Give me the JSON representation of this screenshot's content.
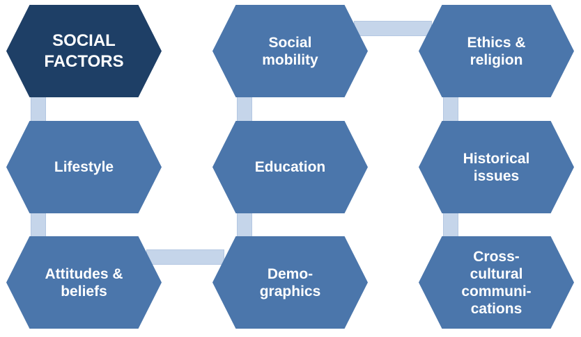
{
  "diagram": {
    "nodes": [
      {
        "label": "SOCIAL\nFACTORS",
        "color": "#1e3f66"
      },
      {
        "label": "Social\nmobility",
        "color": "#4b76ab"
      },
      {
        "label": "Ethics &\nreligion",
        "color": "#4b76ab"
      },
      {
        "label": "Lifestyle",
        "color": "#4b76ab"
      },
      {
        "label": "Education",
        "color": "#4b76ab"
      },
      {
        "label": "Historical\nissues",
        "color": "#4b76ab"
      },
      {
        "label": "Attitudes &\nbeliefs",
        "color": "#4b76ab"
      },
      {
        "label": "Demo-\ngraphics",
        "color": "#4b76ab"
      },
      {
        "label": "Cross-\ncultural\ncommuni-\ncations",
        "color": "#4b76ab"
      }
    ],
    "connector_color": "#c5d5ea"
  }
}
